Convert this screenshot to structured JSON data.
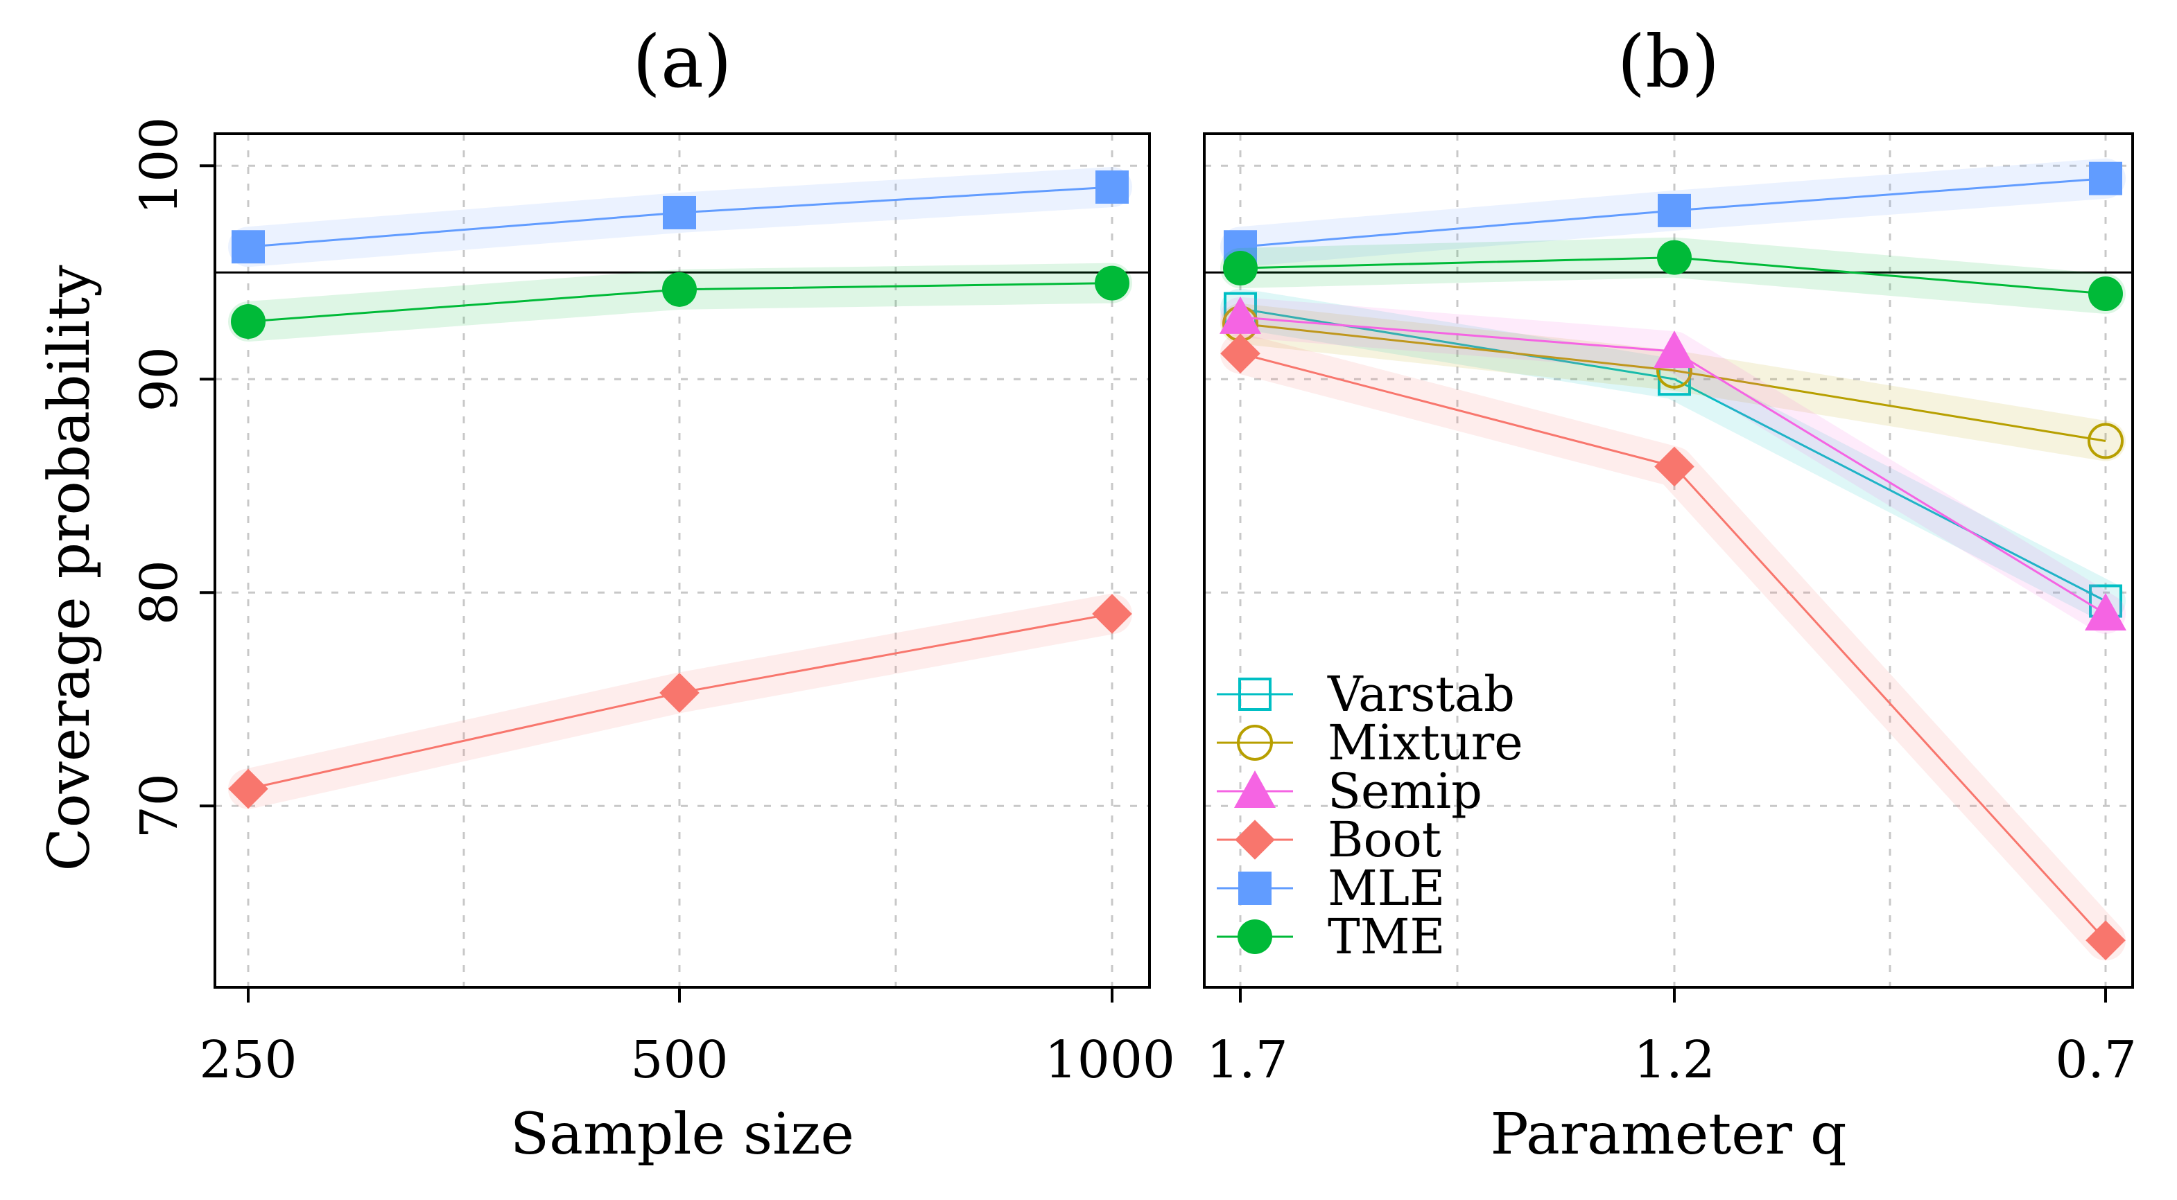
{
  "colors": {
    "Varstab": "#00BFC4",
    "Mixture": "#B79F00",
    "Semip": "#F564E3",
    "Boot": "#F8766D",
    "MLE": "#619CFF",
    "TME": "#00BA38"
  },
  "shared": {
    "ylabel": "Coverage probability",
    "ylim": [
      61.5,
      101.5
    ],
    "yticks": [
      70,
      80,
      90,
      100
    ],
    "ytick_labels": [
      "70",
      "80",
      "90",
      "100"
    ],
    "reference_line": 95
  },
  "legend": {
    "entries": [
      {
        "name": "Varstab",
        "marker": "square-open"
      },
      {
        "name": "Mixture",
        "marker": "circle-open"
      },
      {
        "name": "Semip",
        "marker": "triangle"
      },
      {
        "name": "Boot",
        "marker": "diamond"
      },
      {
        "name": "MLE",
        "marker": "square"
      },
      {
        "name": "TME",
        "marker": "circle"
      }
    ]
  },
  "chart_data": [
    {
      "type": "line",
      "title": "(a)",
      "xlabel": "Sample size",
      "ylabel": "Coverage probability",
      "categories": [
        "250",
        "500",
        "1000"
      ],
      "ylim": [
        61.5,
        101.5
      ],
      "grid": true,
      "series": [
        {
          "name": "MLE",
          "marker": "square",
          "values": [
            96.2,
            97.8,
            99.0
          ]
        },
        {
          "name": "TME",
          "marker": "circle",
          "values": [
            92.7,
            94.2,
            94.5
          ]
        },
        {
          "name": "Boot",
          "marker": "diamond",
          "values": [
            70.8,
            75.3,
            79.0
          ]
        }
      ]
    },
    {
      "type": "line",
      "title": "(b)",
      "xlabel": "Parameter q",
      "ylabel": "",
      "categories": [
        "1.7",
        "1.2",
        "0.7"
      ],
      "ylim": [
        61.5,
        101.5
      ],
      "grid": true,
      "legend_position": "bottom-left",
      "series": [
        {
          "name": "Varstab",
          "marker": "square-open",
          "values": [
            93.3,
            90.0,
            79.6
          ]
        },
        {
          "name": "Mixture",
          "marker": "circle-open",
          "values": [
            92.6,
            90.4,
            87.1
          ]
        },
        {
          "name": "Semip",
          "marker": "triangle",
          "values": [
            92.9,
            91.3,
            79.0
          ]
        },
        {
          "name": "Boot",
          "marker": "diamond",
          "values": [
            91.2,
            85.9,
            63.7
          ]
        },
        {
          "name": "MLE",
          "marker": "square",
          "values": [
            96.2,
            97.9,
            99.4
          ]
        },
        {
          "name": "TME",
          "marker": "circle",
          "values": [
            95.2,
            95.7,
            94.0
          ]
        }
      ]
    }
  ]
}
